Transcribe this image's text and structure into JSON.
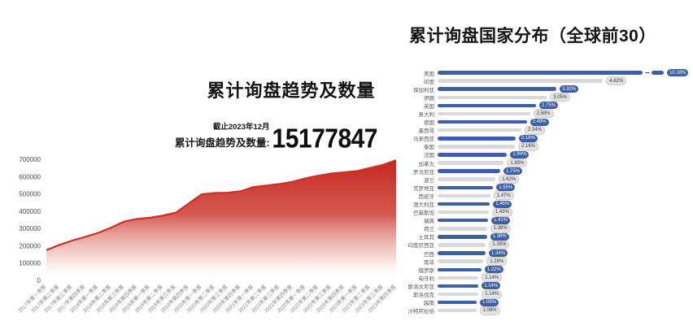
{
  "left_chart": {
    "stat_note": "截止2023年12月",
    "stat_label": "累计询盘趋势及数量:",
    "stat_value": "15177847"
  },
  "right_chart": {
    "title": "累计询盘国家分布（全球前30）"
  },
  "chart_data": [
    {
      "type": "area",
      "title": "累计询盘趋势及数量",
      "x": [
        "2017年第一季度",
        "2017年第二季度",
        "2017年第三季度",
        "2017年第四季度",
        "2018年第一季度",
        "2018年第二季度",
        "2018年第三季度",
        "2018年第四季度",
        "2019年第一季度",
        "2019年第二季度",
        "2019年第三季度",
        "2019年第四季度",
        "2020年第一季度",
        "2020年第二季度",
        "2020年第三季度",
        "2020年第四季度",
        "2021年第一季度",
        "2021年第二季度",
        "2021年第三季度",
        "2021年第四季度",
        "2022年第一季度",
        "2022年第二季度",
        "2022年第三季度",
        "2022年第四季度",
        "2023年第一季度",
        "2023年第二季度",
        "2023年第三季度",
        "2023年第四季度"
      ],
      "values": [
        175000,
        205000,
        230000,
        252000,
        275000,
        305000,
        340000,
        355000,
        362000,
        375000,
        392000,
        445000,
        498000,
        505000,
        507000,
        515000,
        540000,
        548000,
        557000,
        570000,
        590000,
        605000,
        618000,
        625000,
        632000,
        650000,
        668000,
        695000
      ],
      "ylim": [
        0,
        700000
      ],
      "yticks": [
        0,
        100000,
        200000,
        300000,
        400000,
        500000,
        600000,
        700000
      ],
      "line_color": "#ce2f27",
      "fill_gradient": [
        "#c5281f",
        "#cd423a",
        "#eba39b",
        "#ffffff"
      ],
      "grid": false,
      "legend": "none"
    },
    {
      "type": "bar",
      "orientation": "horizontal",
      "title": "累计询盘国家分布（全球前30）",
      "categories": [
        "美国",
        "印度",
        "保加利亚",
        "伊朗",
        "英国",
        "意大利",
        "德国",
        "墨西哥",
        "马来西亚",
        "泰国",
        "法国",
        "加拿大",
        "罗马尼亚",
        "波兰",
        "克罗地亚",
        "西班牙",
        "澳大利亚",
        "巴基斯坦",
        "瑞典",
        "荷兰",
        "土耳其",
        "印度尼西亚",
        "巴西",
        "南非",
        "俄罗斯",
        "匈牙利",
        "斯洛文尼亚",
        "斯洛伐克",
        "越南",
        "沙特阿拉伯"
      ],
      "values": [
        10.18,
        4.62,
        3.32,
        3.05,
        2.75,
        2.58,
        2.49,
        2.34,
        2.18,
        2.16,
        1.94,
        1.85,
        1.75,
        1.62,
        1.55,
        1.47,
        1.46,
        1.43,
        1.41,
        1.38,
        1.38,
        1.35,
        1.34,
        1.28,
        1.22,
        1.14,
        1.14,
        1.14,
        1.09,
        1.08
      ],
      "labels": [
        "10.18%",
        "4.62%",
        "3.32%",
        "3.05%",
        "2.75%",
        "2.58%",
        "2.49%",
        "2.34%",
        "2.18%",
        "2.16%",
        "1.94%",
        "1.85%",
        "1.75%",
        "1.62%",
        "1.55%",
        "1.47%",
        "1.46%",
        "1.43%",
        "1.41%",
        "1.38%",
        "1.38%",
        "1.35%",
        "1.34%",
        "1.28%",
        "1.22%",
        "1.14%",
        "1.14%",
        "1.14%",
        "1.09%",
        "1.08%"
      ],
      "axis_break_row": 0,
      "colors": {
        "primary_bar": "#3d5fa8",
        "secondary_bar": "#d9d9d9",
        "badge_primary_bg": "#3d5fa8",
        "badge_primary_text": "#ffffff",
        "badge_secondary_bg": "#e3e3e3",
        "badge_secondary_text": "#3a3a3a"
      },
      "legend": "none"
    }
  ]
}
